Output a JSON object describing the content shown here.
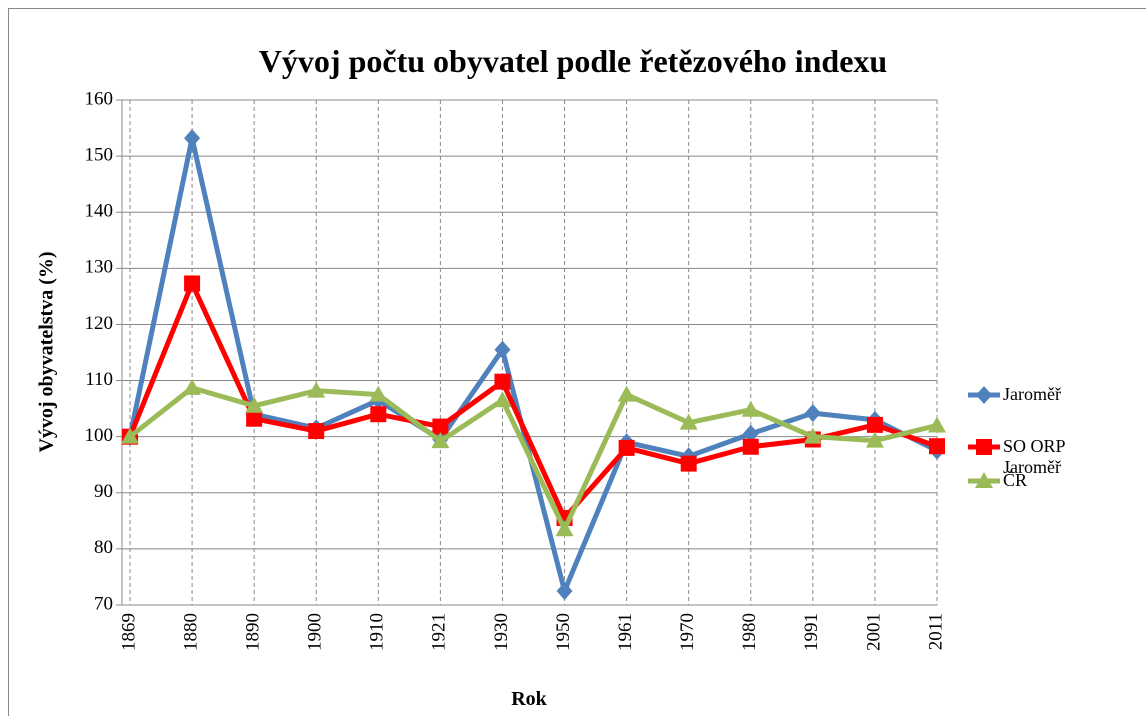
{
  "chart_data": {
    "type": "line",
    "title": "Vývoj počtu obyvatel podle řetězového indexu",
    "x_label": "Rok",
    "y_label": "Vývoj obyvatelstva (%)",
    "categories": [
      "1869",
      "1880",
      "1890",
      "1900",
      "1910",
      "1921",
      "1930",
      "1950",
      "1961",
      "1970",
      "1980",
      "1991",
      "2001",
      "2011"
    ],
    "series": [
      {
        "name": "Jaroměř",
        "color": "#4f81bd",
        "marker": "diamond",
        "values": [
          100,
          153.2,
          104,
          101.5,
          106.5,
          99.5,
          115.5,
          72.5,
          99,
          96.5,
          100.5,
          104.2,
          103,
          97.5
        ]
      },
      {
        "name": "SO ORP Jaroměř",
        "color": "#ff0000",
        "marker": "square",
        "values": [
          100,
          127.3,
          103.2,
          101,
          104,
          101.8,
          109.8,
          85.5,
          98,
          95.2,
          98.2,
          99.5,
          102.1,
          98.3
        ]
      },
      {
        "name": "ČR",
        "color": "#9bbb59",
        "marker": "triangle",
        "values": [
          100,
          108.7,
          105.5,
          108.2,
          107.5,
          99.2,
          106.5,
          83.5,
          107.5,
          102.5,
          104.8,
          100,
          99.3,
          102
        ]
      }
    ],
    "ylim": [
      70,
      160
    ],
    "yticks": [
      70,
      80,
      90,
      100,
      110,
      120,
      130,
      140,
      150,
      160
    ],
    "grid": true,
    "legend": "right"
  }
}
